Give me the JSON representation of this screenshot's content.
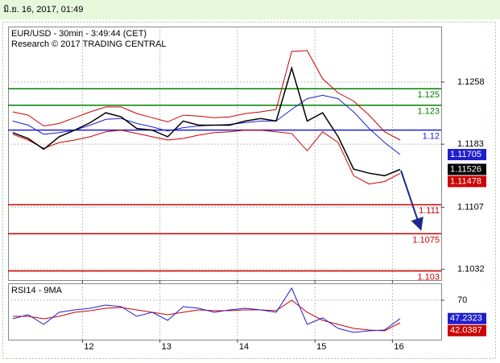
{
  "header": {
    "timestamp": "มิ.ย. 16, 2017, 01:49"
  },
  "chart_data": [
    {
      "type": "line",
      "title": "EUR/USD - 30min - 3:49:44 (CET)",
      "subtitle": "Research © 2017 TRADING CENTRAL",
      "x": [
        11.1,
        11.3,
        11.5,
        11.7,
        11.9,
        12.1,
        12.3,
        12.5,
        12.7,
        12.9,
        13.1,
        13.3,
        13.5,
        13.7,
        13.9,
        14.1,
        14.3,
        14.5,
        14.7,
        14.9,
        15.1,
        15.3,
        15.5,
        15.7,
        15.9,
        16.1
      ],
      "series": [
        {
          "color": "#cc0000",
          "values": [
            1.1222,
            1.1218,
            1.1205,
            1.1208,
            1.1215,
            1.1222,
            1.1228,
            1.1228,
            1.122,
            1.1215,
            1.121,
            1.1218,
            1.1217,
            1.1215,
            1.1216,
            1.122,
            1.1222,
            1.1225,
            1.1295,
            1.1296,
            1.1262,
            1.1245,
            1.1235,
            1.1218,
            1.1198,
            1.1188
          ]
        },
        {
          "color": "#cc0000",
          "values": [
            1.1195,
            1.1188,
            1.1178,
            1.1185,
            1.1188,
            1.1192,
            1.1198,
            1.12,
            1.1196,
            1.1192,
            1.1188,
            1.119,
            1.1194,
            1.1197,
            1.1198,
            1.12,
            1.12,
            1.1198,
            1.1196,
            1.1175,
            1.1198,
            1.1185,
            1.1145,
            1.1135,
            1.1138,
            1.11478
          ]
        },
        {
          "color": "#1f1fd0",
          "values": [
            1.1211,
            1.1206,
            1.1195,
            1.1197,
            1.12,
            1.1206,
            1.1213,
            1.1214,
            1.1208,
            1.1204,
            1.1199,
            1.1203,
            1.1205,
            1.1206,
            1.1207,
            1.1209,
            1.1211,
            1.1211,
            1.1225,
            1.1238,
            1.1242,
            1.1238,
            1.1222,
            1.1202,
            1.1185,
            1.11705
          ]
        },
        {
          "color": "#000000",
          "values": [
            1.1197,
            1.119,
            1.1177,
            1.1192,
            1.12,
            1.1209,
            1.1221,
            1.1216,
            1.1202,
            1.12,
            1.1192,
            1.1211,
            1.1206,
            1.1206,
            1.1206,
            1.1211,
            1.1214,
            1.1211,
            1.1275,
            1.1211,
            1.1221,
            1.1192,
            1.1153,
            1.1148,
            1.1145,
            1.11526
          ]
        }
      ],
      "levels": [
        {
          "value": 1.125,
          "color": "#008000"
        },
        {
          "value": 1.123,
          "color": "#008000"
        },
        {
          "value": 1.12,
          "color": "#1f1fd0"
        },
        {
          "value": 1.111,
          "color": "#cc0000"
        },
        {
          "value": 1.1075,
          "color": "#cc0000"
        },
        {
          "value": 1.103,
          "color": "#cc0000"
        }
      ],
      "xlim": [
        11.04,
        16.63
      ],
      "xticks": [
        12,
        13,
        14,
        15,
        16
      ],
      "ylim": [
        1.1019,
        1.1325
      ],
      "yticks": [
        1.1258,
        1.1183,
        1.1107,
        1.1032
      ],
      "grid": true
    },
    {
      "type": "line",
      "title": "RSI14 - 9MA",
      "x": [
        11.1,
        11.3,
        11.5,
        11.7,
        11.9,
        12.1,
        12.3,
        12.5,
        12.7,
        12.9,
        13.1,
        13.3,
        13.5,
        13.7,
        13.9,
        14.1,
        14.3,
        14.5,
        14.7,
        14.9,
        15.1,
        15.3,
        15.5,
        15.7,
        15.9,
        16.1
      ],
      "series": [
        {
          "color": "#cc0000",
          "values": [
            50,
            50,
            47,
            50,
            55,
            57,
            60,
            61,
            58,
            55,
            52,
            55,
            58,
            57,
            57,
            58,
            58,
            57,
            70,
            55,
            45,
            40,
            35,
            33,
            32,
            42.0387
          ]
        },
        {
          "color": "#1f1fd0",
          "values": [
            47,
            52,
            40,
            55,
            58,
            60,
            64,
            62,
            50,
            55,
            45,
            62,
            60,
            55,
            58,
            60,
            58,
            55,
            85,
            40,
            48,
            35,
            30,
            32,
            33,
            47.2323
          ]
        }
      ],
      "xlim": [
        11.04,
        16.63
      ],
      "xticks": [
        12,
        13,
        14,
        15,
        16
      ],
      "ylim": [
        21,
        91
      ],
      "yticks": [
        70
      ],
      "grid": true
    }
  ]
}
